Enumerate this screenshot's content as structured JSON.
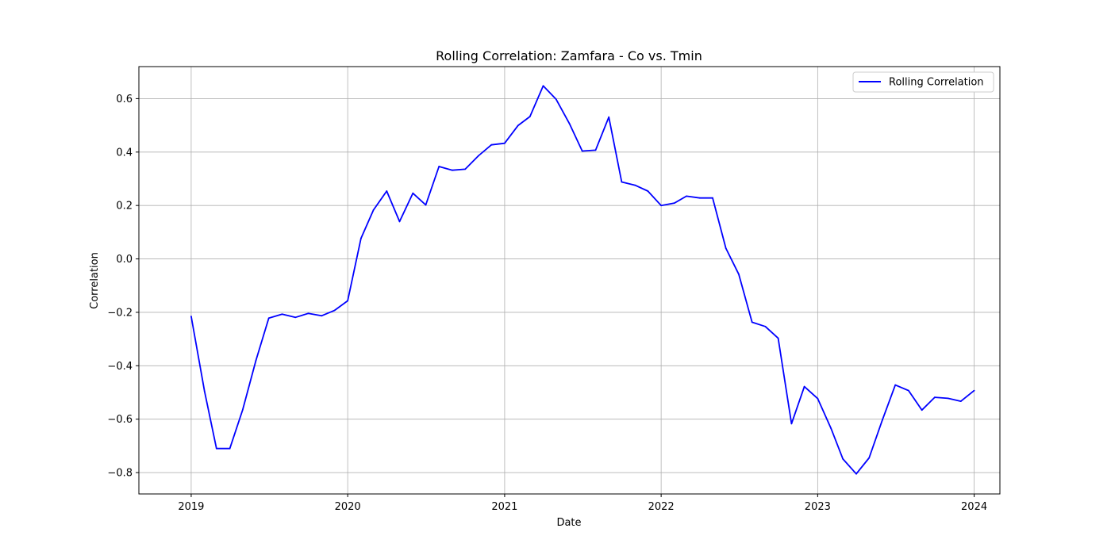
{
  "chart_data": {
    "type": "line",
    "title": "Rolling Correlation: Zamfara - Co vs. Tmin",
    "xlabel": "Date",
    "ylabel": "Correlation",
    "xlim": [
      "2018-09-01",
      "2024-03-01"
    ],
    "ylim": [
      -0.88,
      0.72
    ],
    "x_ticks": [
      "2019",
      "2020",
      "2021",
      "2022",
      "2023",
      "2024"
    ],
    "y_ticks": [
      "−0.8",
      "−0.6",
      "−0.4",
      "−0.2",
      "0.0",
      "0.2",
      "0.4",
      "0.6"
    ],
    "grid": true,
    "legend_position": "top-right",
    "series": [
      {
        "name": "Rolling Correlation",
        "color": "#0000ff",
        "points": [
          [
            "2019-01-01",
            -0.215
          ],
          [
            "2019-02-01",
            -0.495
          ],
          [
            "2019-03-01",
            -0.71
          ],
          [
            "2019-04-01",
            -0.71
          ],
          [
            "2019-05-01",
            -0.565
          ],
          [
            "2019-06-01",
            -0.38
          ],
          [
            "2019-07-01",
            -0.222
          ],
          [
            "2019-08-01",
            -0.207
          ],
          [
            "2019-09-01",
            -0.219
          ],
          [
            "2019-10-01",
            -0.204
          ],
          [
            "2019-11-01",
            -0.213
          ],
          [
            "2019-12-01",
            -0.193
          ],
          [
            "2020-01-01",
            -0.157
          ],
          [
            "2020-02-01",
            0.077
          ],
          [
            "2020-03-01",
            0.183
          ],
          [
            "2020-04-01",
            0.254
          ],
          [
            "2020-05-01",
            0.14
          ],
          [
            "2020-06-01",
            0.246
          ],
          [
            "2020-07-01",
            0.202
          ],
          [
            "2020-08-01",
            0.346
          ],
          [
            "2020-09-01",
            0.332
          ],
          [
            "2020-10-01",
            0.336
          ],
          [
            "2020-11-01",
            0.386
          ],
          [
            "2020-12-01",
            0.427
          ],
          [
            "2021-01-01",
            0.433
          ],
          [
            "2021-02-01",
            0.499
          ],
          [
            "2021-03-01",
            0.533
          ],
          [
            "2021-04-01",
            0.648
          ],
          [
            "2021-05-01",
            0.598
          ],
          [
            "2021-06-01",
            0.507
          ],
          [
            "2021-07-01",
            0.404
          ],
          [
            "2021-08-01",
            0.407
          ],
          [
            "2021-09-01",
            0.531
          ],
          [
            "2021-10-01",
            0.288
          ],
          [
            "2021-11-01",
            0.276
          ],
          [
            "2021-12-01",
            0.254
          ],
          [
            "2022-01-01",
            0.2
          ],
          [
            "2022-02-01",
            0.209
          ],
          [
            "2022-03-01",
            0.235
          ],
          [
            "2022-04-01",
            0.228
          ],
          [
            "2022-05-01",
            0.228
          ],
          [
            "2022-06-01",
            0.04
          ],
          [
            "2022-07-01",
            -0.057
          ],
          [
            "2022-08-01",
            -0.237
          ],
          [
            "2022-09-01",
            -0.253
          ],
          [
            "2022-10-01",
            -0.297
          ],
          [
            "2022-11-01",
            -0.617
          ],
          [
            "2022-12-01",
            -0.478
          ],
          [
            "2023-01-01",
            -0.523
          ],
          [
            "2023-02-01",
            -0.634
          ],
          [
            "2023-03-01",
            -0.749
          ],
          [
            "2023-04-01",
            -0.805
          ],
          [
            "2023-05-01",
            -0.745
          ],
          [
            "2023-06-01",
            -0.603
          ],
          [
            "2023-07-01",
            -0.472
          ],
          [
            "2023-08-01",
            -0.493
          ],
          [
            "2023-09-01",
            -0.566
          ],
          [
            "2023-10-01",
            -0.518
          ],
          [
            "2023-11-01",
            -0.522
          ],
          [
            "2023-12-01",
            -0.533
          ],
          [
            "2024-01-01",
            -0.493
          ]
        ]
      }
    ]
  }
}
